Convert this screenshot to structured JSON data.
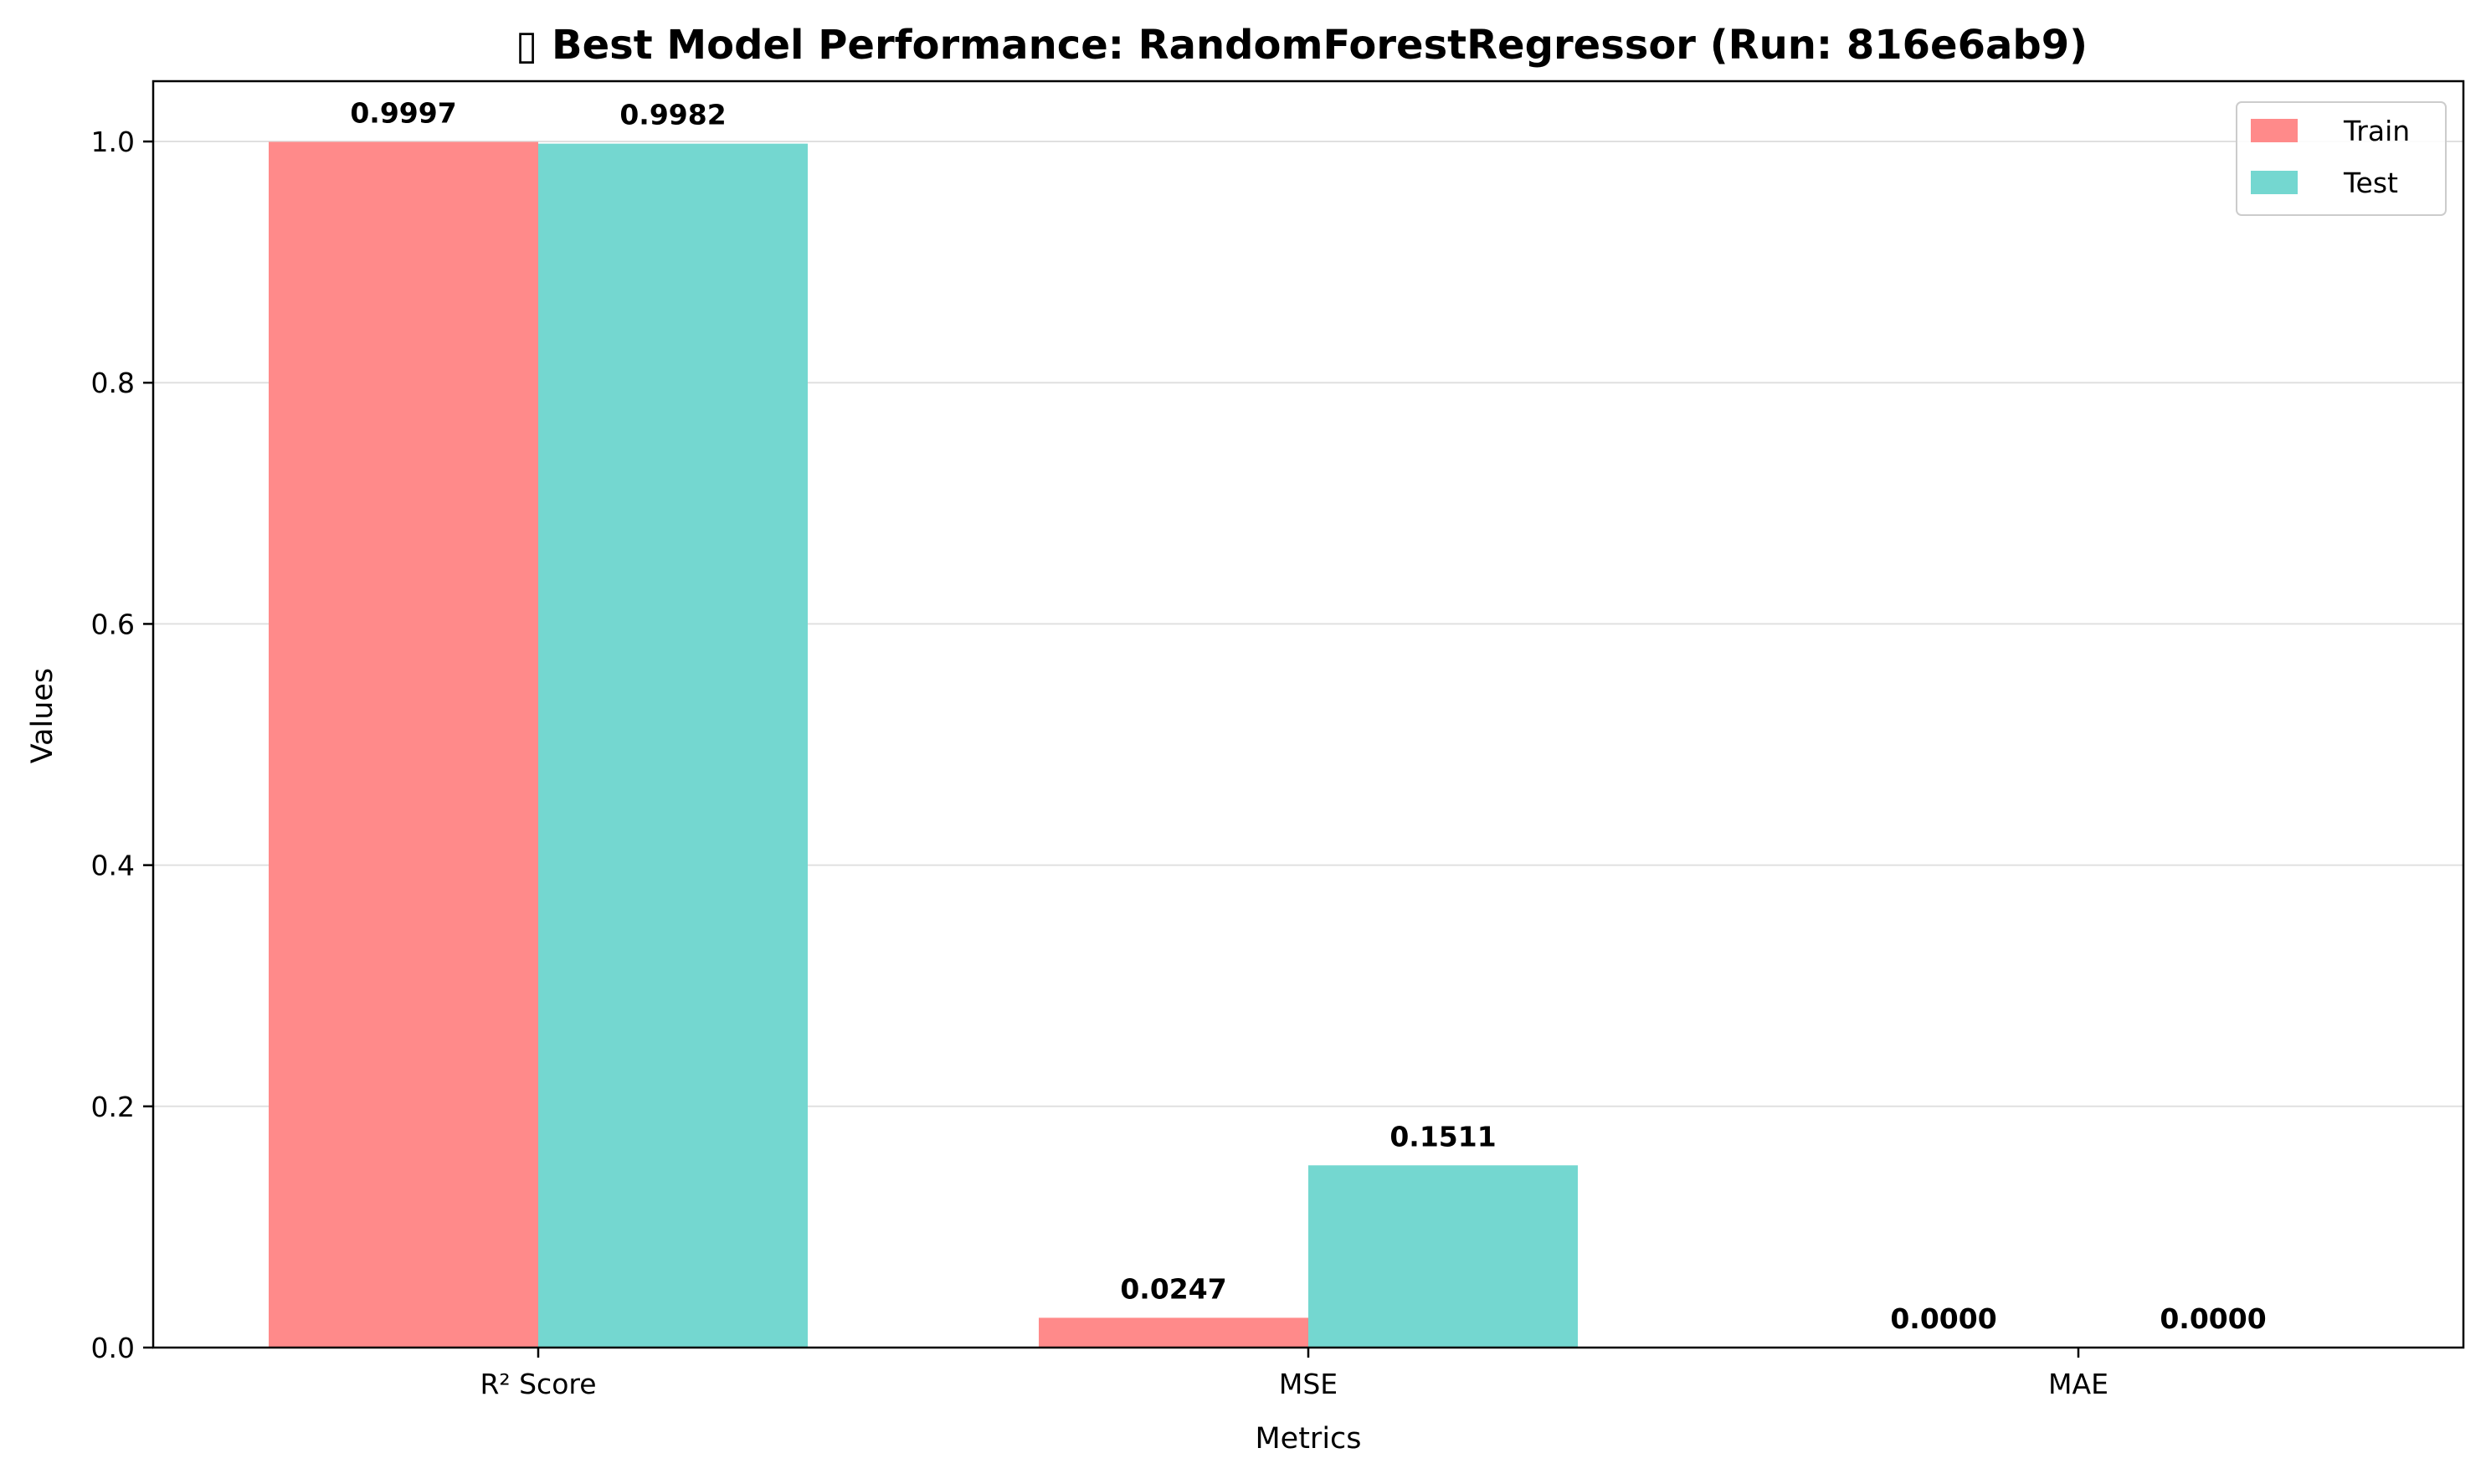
{
  "chart_data": {
    "type": "bar",
    "title": "▯ Best Model Performance: RandomForestRegressor (Run: 816e6ab9)",
    "xlabel": "Metrics",
    "ylabel": "Values",
    "categories": [
      "R² Score",
      "MSE",
      "MAE"
    ],
    "series": [
      {
        "name": "Train",
        "values": [
          0.9997,
          0.0247,
          0.0
        ],
        "labels": [
          "0.9997",
          "0.0247",
          "0.0000"
        ],
        "color": "#ff8a8a"
      },
      {
        "name": "Test",
        "values": [
          0.9982,
          0.1511,
          0.0
        ],
        "labels": [
          "0.9982",
          "0.1511",
          "0.0000"
        ],
        "color": "#74d7d0"
      }
    ],
    "ylim": [
      0,
      1.05
    ],
    "yticks": [
      0.0,
      0.2,
      0.4,
      0.6,
      0.8,
      1.0
    ],
    "ytick_labels": [
      "0.0",
      "0.2",
      "0.4",
      "0.6",
      "0.8",
      "1.0"
    ],
    "grid": "horizontal",
    "legend_position": "top-right"
  }
}
